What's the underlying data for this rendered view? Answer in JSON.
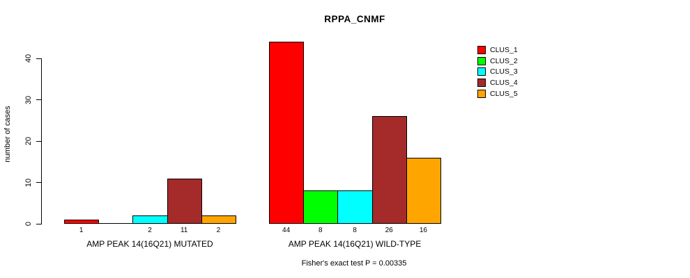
{
  "title": "RPPA_CNMF",
  "chart_data": {
    "type": "bar",
    "title": "RPPA_CNMF",
    "xlabel": "",
    "ylabel": "number of cases",
    "ylim": [
      0,
      44
    ],
    "yticks": [
      0,
      10,
      20,
      30,
      40
    ],
    "grid": false,
    "legend_position": "top-right",
    "categories": [
      "AMP PEAK 14(16Q21) MUTATED",
      "AMP PEAK 14(16Q21) WILD-TYPE"
    ],
    "series": [
      {
        "name": "CLUS_1",
        "color": "#ff0000",
        "values": [
          1,
          44
        ]
      },
      {
        "name": "CLUS_2",
        "color": "#00ff00",
        "values": [
          0,
          8
        ]
      },
      {
        "name": "CLUS_3",
        "color": "#00ffff",
        "values": [
          2,
          8
        ]
      },
      {
        "name": "CLUS_4",
        "color": "#a52a2a",
        "values": [
          11,
          26
        ]
      },
      {
        "name": "CLUS_5",
        "color": "#ffa500",
        "values": [
          2,
          16
        ]
      }
    ],
    "bar_value_labels": [
      [
        "1",
        "",
        "2",
        "11",
        "2"
      ],
      [
        "44",
        "8",
        "8",
        "26",
        "16"
      ]
    ],
    "annotation": "Fisher's exact test P = 0.00335"
  }
}
